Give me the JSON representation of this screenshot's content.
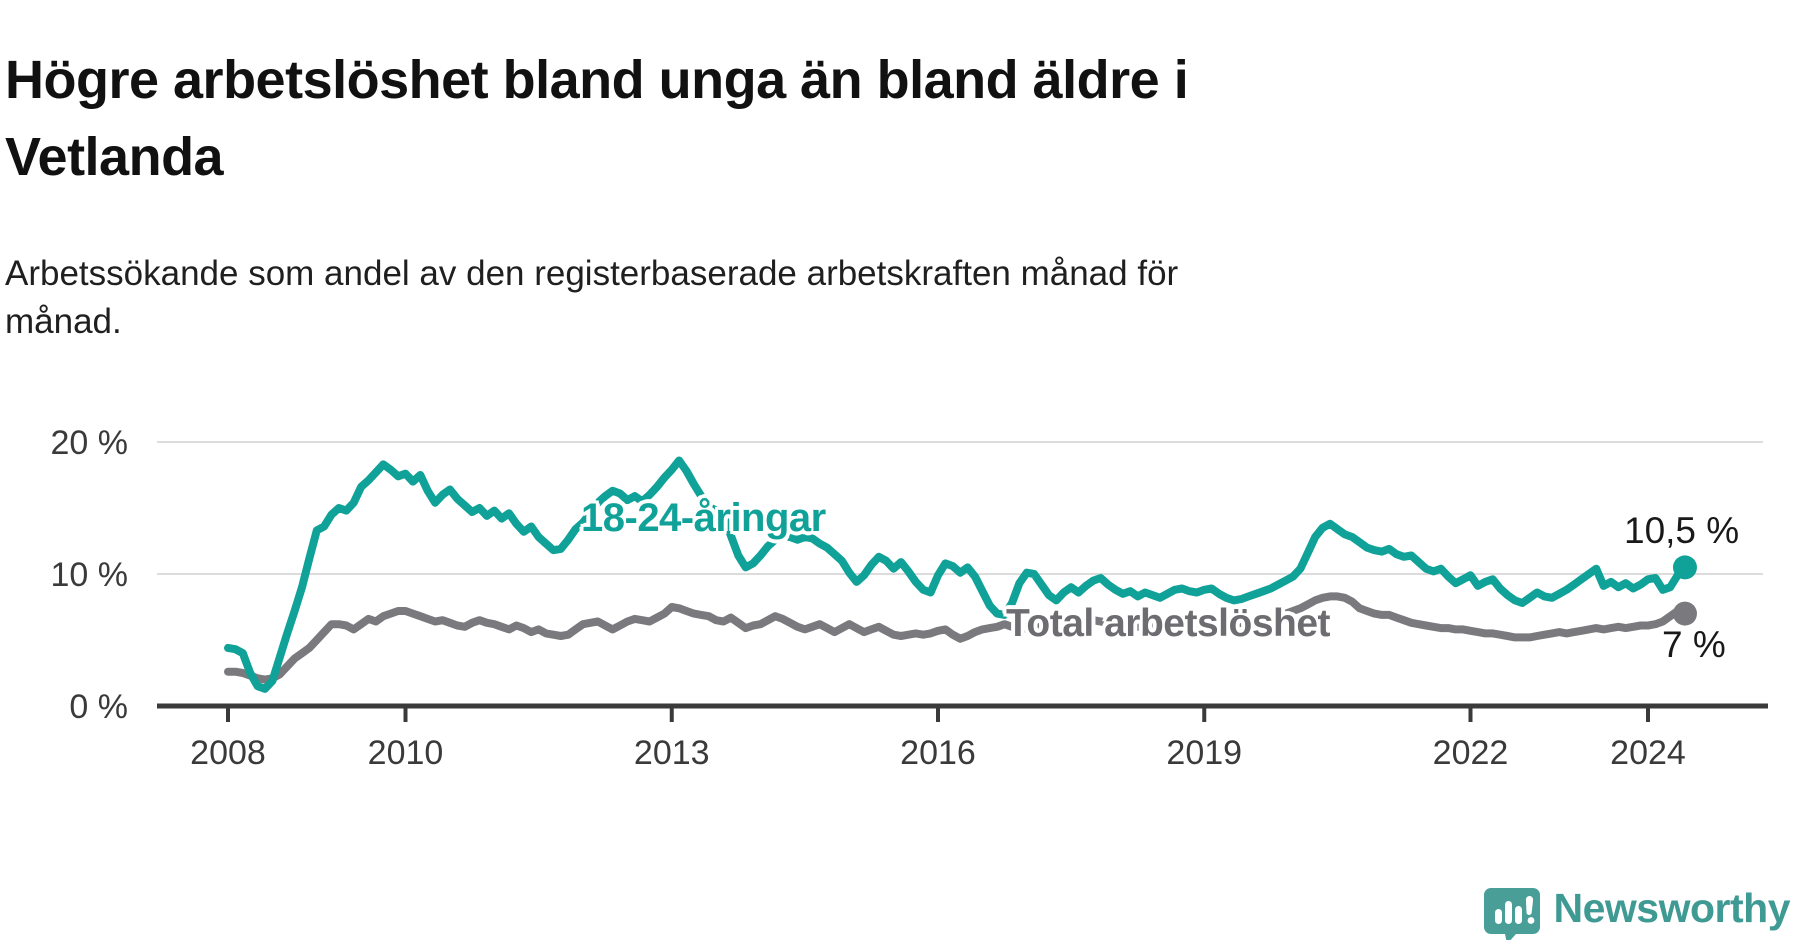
{
  "header": {
    "title": "Högre arbetslöshet bland unga än bland äldre i Vetlanda",
    "subtitle": "Arbetssökande som andel av den registerbaserade arbetskraften månad för månad."
  },
  "chart_data": {
    "type": "line",
    "title": "Högre arbetslöshet bland unga än bland äldre i Vetlanda",
    "xlabel": "",
    "ylabel": "Arbetssökande som andel av den registerbaserade arbetskraften",
    "x_unit": "month",
    "x_start_year": 2008,
    "x_tick_years": [
      2008,
      2010,
      2013,
      2016,
      2019,
      2022,
      2024
    ],
    "y_ticks": [
      0,
      10,
      20
    ],
    "y_tick_suffix": " %",
    "ylim": [
      0,
      22
    ],
    "grid": "horizontal-only",
    "legend_position": "inline-labels",
    "axis_color": "#3a3a3a",
    "grid_color": "#dcdcdc",
    "series": [
      {
        "name": "18-24-åringar",
        "color": "#10a298",
        "end_label": "10,5 %",
        "end_value": 10.5,
        "values": [
          4.4,
          4.3,
          4.0,
          2.5,
          1.5,
          1.3,
          1.9,
          3.7,
          5.5,
          7.2,
          9.0,
          11.2,
          13.3,
          13.6,
          14.5,
          15.0,
          14.8,
          15.4,
          16.6,
          17.1,
          17.7,
          18.3,
          17.9,
          17.4,
          17.6,
          17.0,
          17.5,
          16.3,
          15.4,
          16.0,
          16.4,
          15.7,
          15.2,
          14.7,
          15.0,
          14.4,
          14.8,
          14.2,
          14.6,
          13.8,
          13.2,
          13.6,
          12.8,
          12.3,
          11.8,
          11.9,
          12.6,
          13.4,
          13.9,
          14.6,
          15.4,
          15.9,
          16.3,
          16.1,
          15.6,
          15.9,
          15.5,
          16.0,
          16.6,
          17.3,
          17.9,
          18.6,
          17.8,
          16.8,
          15.9,
          15.1,
          14.8,
          14.4,
          12.9,
          11.4,
          10.5,
          10.8,
          11.4,
          12.1,
          12.6,
          12.9,
          12.8,
          12.6,
          12.8,
          12.7,
          12.3,
          12.0,
          11.5,
          11.0,
          10.1,
          9.4,
          9.9,
          10.7,
          11.3,
          11.0,
          10.4,
          10.9,
          10.2,
          9.4,
          8.8,
          8.6,
          9.9,
          10.8,
          10.6,
          10.1,
          10.5,
          9.8,
          8.7,
          7.6,
          7.0,
          6.9,
          7.8,
          9.3,
          10.1,
          10.0,
          9.2,
          8.4,
          8.0,
          8.6,
          9.0,
          8.6,
          9.1,
          9.5,
          9.7,
          9.2,
          8.8,
          8.5,
          8.7,
          8.3,
          8.6,
          8.4,
          8.2,
          8.5,
          8.8,
          8.9,
          8.7,
          8.6,
          8.8,
          8.9,
          8.5,
          8.2,
          8.0,
          8.1,
          8.3,
          8.5,
          8.7,
          8.9,
          9.2,
          9.5,
          9.8,
          10.4,
          11.6,
          12.8,
          13.5,
          13.8,
          13.4,
          13.0,
          12.8,
          12.4,
          12.0,
          11.8,
          11.7,
          11.9,
          11.5,
          11.3,
          11.4,
          10.9,
          10.4,
          10.2,
          10.4,
          9.8,
          9.3,
          9.6,
          9.9,
          9.1,
          9.4,
          9.6,
          8.9,
          8.4,
          8.0,
          7.8,
          8.2,
          8.6,
          8.3,
          8.2,
          8.5,
          8.8,
          9.2,
          9.6,
          10.0,
          10.4,
          9.1,
          9.4,
          9.0,
          9.3,
          8.9,
          9.2,
          9.6,
          9.7,
          8.8,
          9.0,
          9.9,
          10.5
        ]
      },
      {
        "name": "Total arbetslöshet",
        "color": "#7a7a7e",
        "end_label": "7 %",
        "end_value": 7,
        "values": [
          2.6,
          2.6,
          2.5,
          2.3,
          2.1,
          2.0,
          2.1,
          2.4,
          3.0,
          3.6,
          4.0,
          4.4,
          5.0,
          5.6,
          6.2,
          6.2,
          6.1,
          5.8,
          6.2,
          6.6,
          6.4,
          6.8,
          7.0,
          7.2,
          7.2,
          7.0,
          6.8,
          6.6,
          6.4,
          6.5,
          6.3,
          6.1,
          6.0,
          6.3,
          6.5,
          6.3,
          6.2,
          6.0,
          5.8,
          6.1,
          5.9,
          5.6,
          5.8,
          5.5,
          5.4,
          5.3,
          5.4,
          5.8,
          6.2,
          6.3,
          6.4,
          6.1,
          5.8,
          6.1,
          6.4,
          6.6,
          6.5,
          6.4,
          6.7,
          7.0,
          7.5,
          7.4,
          7.2,
          7.0,
          6.9,
          6.8,
          6.5,
          6.4,
          6.7,
          6.3,
          5.9,
          6.1,
          6.2,
          6.5,
          6.8,
          6.6,
          6.3,
          6.0,
          5.8,
          6.0,
          6.2,
          5.9,
          5.6,
          5.9,
          6.2,
          5.9,
          5.6,
          5.8,
          6.0,
          5.7,
          5.4,
          5.3,
          5.4,
          5.5,
          5.4,
          5.5,
          5.7,
          5.8,
          5.4,
          5.1,
          5.3,
          5.6,
          5.8,
          5.9,
          6.0,
          6.2,
          6.0,
          5.8,
          5.9,
          6.1,
          6.2,
          6.0,
          6.2,
          6.4,
          6.3,
          6.2,
          6.4,
          6.5,
          6.4,
          6.3,
          6.3,
          6.2,
          6.1,
          6.0,
          6.1,
          6.2,
          6.0,
          5.9,
          6.0,
          6.1,
          6.0,
          6.1,
          6.2,
          6.3,
          6.2,
          6.1,
          6.2,
          6.3,
          6.4,
          6.5,
          6.6,
          6.7,
          6.8,
          7.0,
          7.2,
          7.4,
          7.7,
          8.0,
          8.2,
          8.3,
          8.3,
          8.2,
          7.9,
          7.4,
          7.2,
          7.0,
          6.9,
          6.9,
          6.7,
          6.5,
          6.3,
          6.2,
          6.1,
          6.0,
          5.9,
          5.9,
          5.8,
          5.8,
          5.7,
          5.6,
          5.5,
          5.5,
          5.4,
          5.3,
          5.2,
          5.2,
          5.2,
          5.3,
          5.4,
          5.5,
          5.6,
          5.5,
          5.6,
          5.7,
          5.8,
          5.9,
          5.8,
          5.9,
          6.0,
          5.9,
          6.0,
          6.1,
          6.1,
          6.2,
          6.4,
          6.8,
          7.2,
          7.0
        ]
      }
    ]
  },
  "branding": {
    "logo_text": "Newsworthy",
    "logo_text_color": "#3f9a94",
    "logo_bubble_color": "#4a9e98",
    "logo_icon": "speech-bubble-bar-chart-icon"
  }
}
